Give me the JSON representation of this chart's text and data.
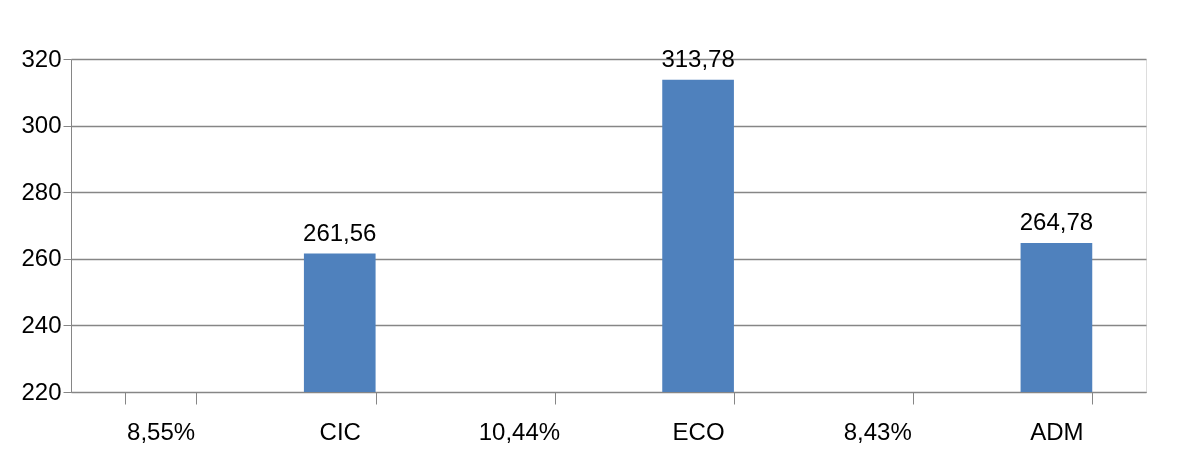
{
  "chart_data": {
    "type": "bar",
    "categories": [
      "8,55%",
      "CIC",
      "10,44%",
      "ECO",
      "8,43%",
      "ADM"
    ],
    "values": [
      null,
      261.56,
      null,
      313.78,
      null,
      264.78
    ],
    "value_labels": [
      null,
      "261,56",
      null,
      "313,78",
      null,
      "264,78"
    ],
    "color": "#4f81bd",
    "ylim": [
      220,
      320
    ],
    "yticks": [
      220,
      240,
      260,
      280,
      300,
      320
    ],
    "grid": "y"
  }
}
